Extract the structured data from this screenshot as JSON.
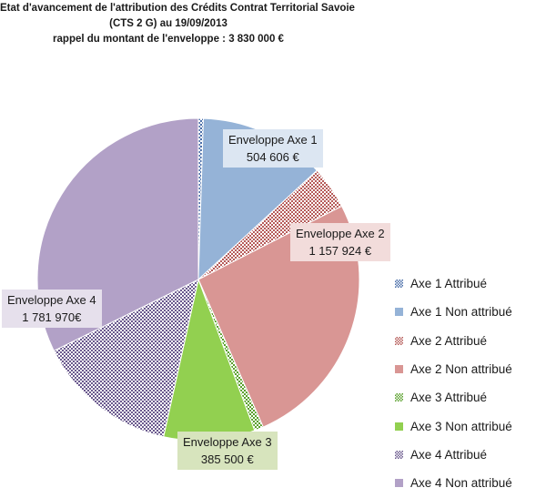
{
  "title": {
    "line1": "Etat d'avancement de l'attribution des Crédits Contrat Territorial Savoie",
    "line2": "(CTS 2 G) au 19/09/2013",
    "line3": "rappel du montant de l'enveloppe : 3 830 000 €"
  },
  "chart_data": {
    "type": "pie",
    "title": "Etat d'avancement de l'attribution des Crédits Contrat Territorial Savoie (CTS 2 G) au 19/09/2013",
    "subtitle": "rappel du montant de l'enveloppe : 3 830 000 €",
    "legend_position": "right",
    "slices": [
      {
        "label": "Axe 1 Attribué",
        "value": 19000,
        "color": "#4a6ea8",
        "pattern": "hatch"
      },
      {
        "label": "Axe 1 Non attribué",
        "value": 485606,
        "color": "#95b3d7",
        "pattern": "solid"
      },
      {
        "label": "Axe 2 Attribué",
        "value": 165000,
        "color": "#b65c5a",
        "pattern": "hatch"
      },
      {
        "label": "Axe 2 Non attribué",
        "value": 992924,
        "color": "#d99694",
        "pattern": "solid"
      },
      {
        "label": "Axe 3 Attribué",
        "value": 35000,
        "color": "#5aa02c",
        "pattern": "hatch"
      },
      {
        "label": "Axe 3 Non attribué",
        "value": 350500,
        "color": "#92d050",
        "pattern": "solid"
      },
      {
        "label": "Axe 4 Attribué",
        "value": 545000,
        "color": "#6b5a8e",
        "pattern": "hatch"
      },
      {
        "label": "Axe 4 Non attribué",
        "value": 1236970,
        "color": "#b2a1c7",
        "pattern": "solid"
      }
    ],
    "callouts": [
      {
        "name": "Enveloppe Axe 1",
        "line1": "Enveloppe Axe 1",
        "line2": "504 606 €",
        "bg": "#dce6f2"
      },
      {
        "name": "Enveloppe Axe 2",
        "line1": "Enveloppe Axe 2",
        "line2": "1 157 924 €",
        "bg": "#f2dcdb"
      },
      {
        "name": "Enveloppe Axe 3",
        "line1": "Enveloppe Axe 3",
        "line2": "385 500 €",
        "bg": "#d7e4bd"
      },
      {
        "name": "Enveloppe Axe 4",
        "line1": "Enveloppe Axe 4",
        "line2": "1 781 970€",
        "bg": "#e6e0ec"
      }
    ]
  }
}
